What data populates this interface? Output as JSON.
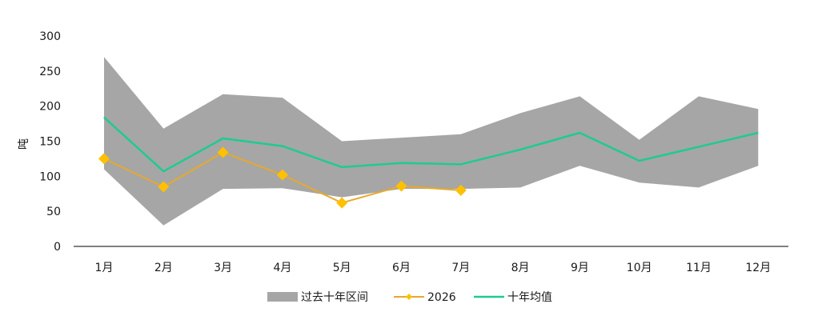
{
  "chart_data": {
    "type": "area",
    "ylabel": "吨",
    "ylim": [
      0,
      300
    ],
    "yticks": [
      "0",
      "50",
      "100",
      "150",
      "200",
      "250",
      "300"
    ],
    "categories": [
      "1月",
      "2月",
      "3月",
      "4月",
      "5月",
      "6月",
      "7月",
      "8月",
      "9月",
      "10月",
      "11月",
      "12月"
    ],
    "band": {
      "name": "过去十年区间",
      "color": "#a6a6a6",
      "upper": [
        270,
        168,
        217,
        212,
        150,
        155,
        160,
        190,
        214,
        152,
        214,
        196
      ],
      "lower": [
        110,
        30,
        82,
        83,
        70,
        82,
        82,
        84,
        115,
        91,
        84,
        115
      ]
    },
    "series": [
      {
        "name": "2026",
        "color": "#e7a92a",
        "marker_color": "#ffc000",
        "values": [
          125,
          85,
          134,
          102,
          62,
          86,
          80,
          null,
          null,
          null,
          null,
          null
        ]
      },
      {
        "name": "十年均值",
        "color": "#1fcb8f",
        "values": [
          184,
          107,
          154,
          143,
          113,
          119,
          117,
          138,
          162,
          122,
          142,
          162
        ]
      }
    ],
    "legend_position": "bottom",
    "grid": false
  }
}
